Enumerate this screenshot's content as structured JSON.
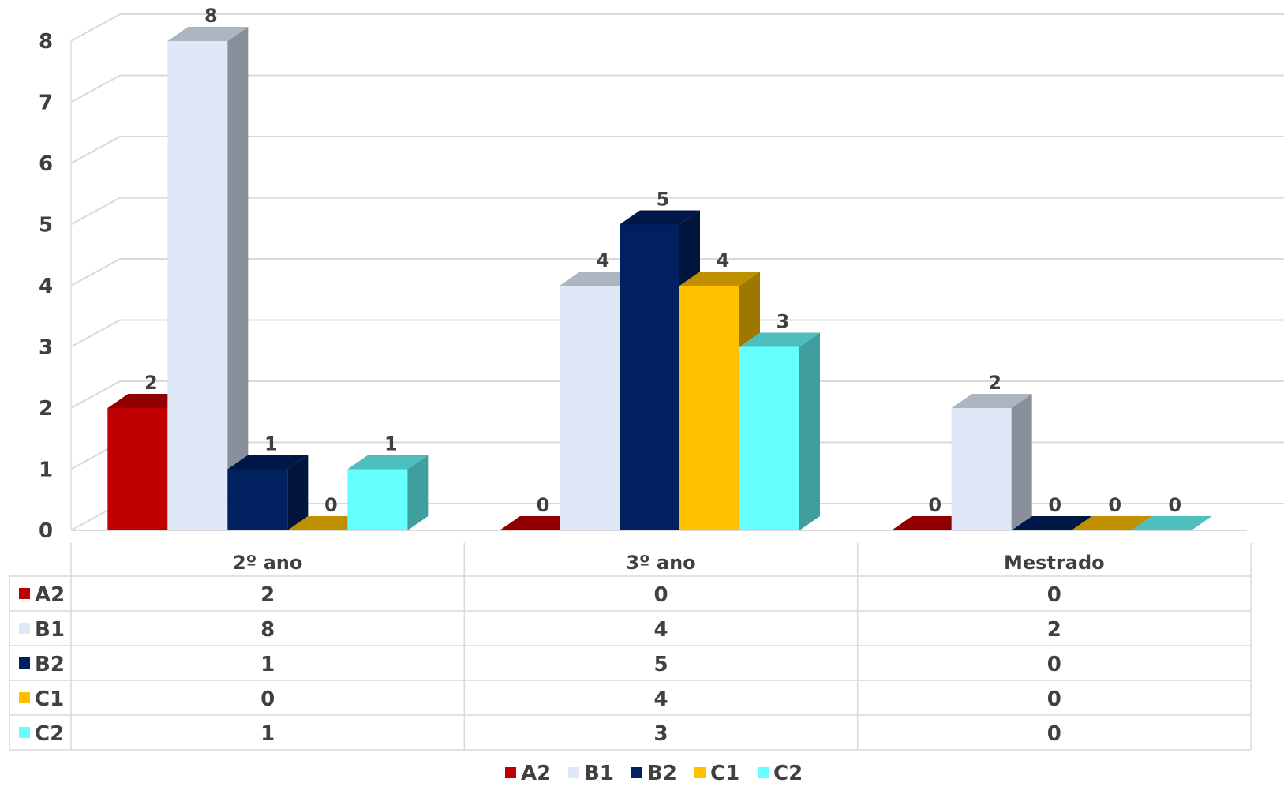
{
  "chart_data": {
    "type": "bar",
    "title": "",
    "xlabel": "",
    "ylabel": "",
    "ylim": [
      0,
      8
    ],
    "yticks": [
      "0",
      "1",
      "2",
      "3",
      "4",
      "5",
      "6",
      "7",
      "8"
    ],
    "categories": [
      "2º ano",
      "3º ano",
      "Mestrado"
    ],
    "series": [
      {
        "name": "A2",
        "values": [
          2,
          0,
          0
        ],
        "color": "#C00000"
      },
      {
        "name": "B1",
        "values": [
          8,
          4,
          2
        ],
        "color": "#DEE8F6"
      },
      {
        "name": "B2",
        "values": [
          1,
          5,
          0
        ],
        "color": "#002060"
      },
      {
        "name": "C1",
        "values": [
          0,
          4,
          0
        ],
        "color": "#FFC000"
      },
      {
        "name": "C2",
        "values": [
          1,
          3,
          0
        ],
        "color": "#66FFFF"
      }
    ],
    "grid": true,
    "three_d": true,
    "data_table": true,
    "legend_position": "bottom"
  }
}
